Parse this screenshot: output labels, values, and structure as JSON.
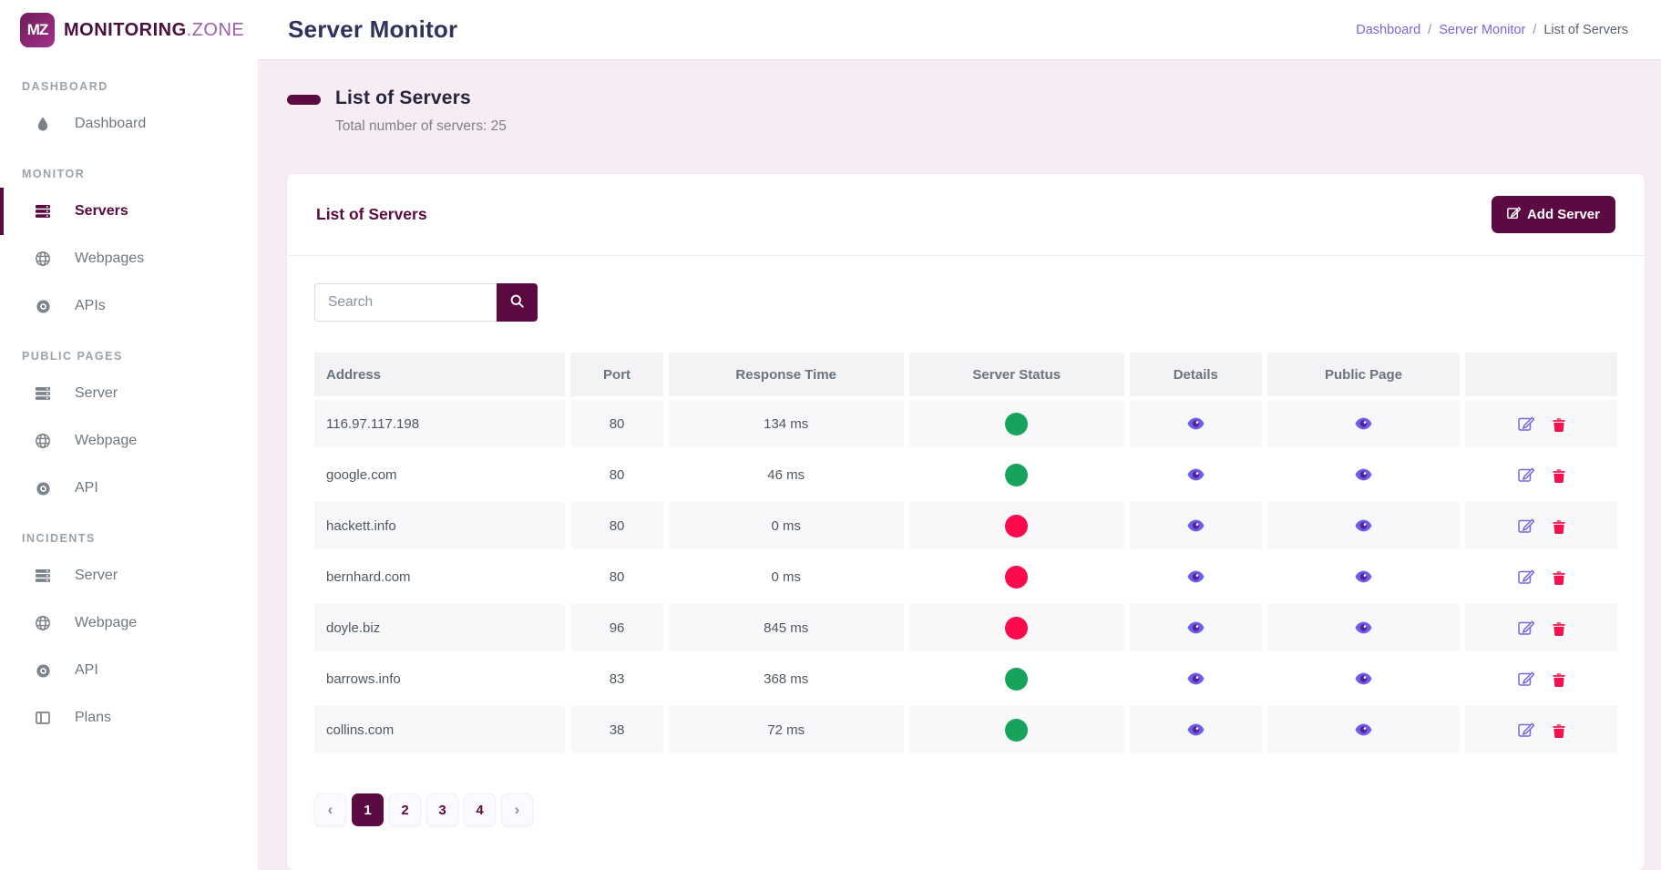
{
  "brand": {
    "badge": "MZ",
    "name_bold": "MONITORING",
    "name_light": ".ZONE"
  },
  "sidebar": {
    "sections": [
      {
        "label": "DASHBOARD",
        "items": [
          {
            "label": "Dashboard",
            "icon": "tint-icon",
            "active": false
          }
        ]
      },
      {
        "label": "MONITOR",
        "items": [
          {
            "label": "Servers",
            "icon": "server-icon",
            "active": true
          },
          {
            "label": "Webpages",
            "icon": "globe-icon",
            "active": false
          },
          {
            "label": "APIs",
            "icon": "dot-circle-icon",
            "active": false
          }
        ]
      },
      {
        "label": "PUBLIC PAGES",
        "items": [
          {
            "label": "Server",
            "icon": "server-icon",
            "active": false
          },
          {
            "label": "Webpage",
            "icon": "globe-icon",
            "active": false
          },
          {
            "label": "API",
            "icon": "dot-circle-icon",
            "active": false
          }
        ]
      },
      {
        "label": "INCIDENTS",
        "items": [
          {
            "label": "Server",
            "icon": "server-icon",
            "active": false
          },
          {
            "label": "Webpage",
            "icon": "globe-icon",
            "active": false
          },
          {
            "label": "API",
            "icon": "dot-circle-icon",
            "active": false
          },
          {
            "label": "Plans",
            "icon": "columns-icon",
            "active": false
          }
        ]
      }
    ]
  },
  "header": {
    "title": "Server Monitor",
    "breadcrumb": [
      {
        "label": "Dashboard",
        "link": true
      },
      {
        "label": "Server Monitor",
        "link": true
      },
      {
        "label": "List of Servers",
        "link": false
      }
    ],
    "breadcrumb_separator": "/"
  },
  "page": {
    "title": "List of Servers",
    "subtitle": "Total number of servers: 25"
  },
  "card": {
    "title": "List of Servers",
    "add_button_label": "Add Server",
    "search_placeholder": "Search",
    "table": {
      "columns": [
        "Address",
        "Port",
        "Response Time",
        "Server Status",
        "Details",
        "Public Page",
        ""
      ],
      "rows": [
        {
          "address": "116.97.117.198",
          "port": "80",
          "response_time": "134 ms",
          "status": "up"
        },
        {
          "address": "google.com",
          "port": "80",
          "response_time": "46 ms",
          "status": "up"
        },
        {
          "address": "hackett.info",
          "port": "80",
          "response_time": "0 ms",
          "status": "down"
        },
        {
          "address": "bernhard.com",
          "port": "80",
          "response_time": "0 ms",
          "status": "down"
        },
        {
          "address": "doyle.biz",
          "port": "96",
          "response_time": "845 ms",
          "status": "down"
        },
        {
          "address": "barrows.info",
          "port": "83",
          "response_time": "368 ms",
          "status": "up"
        },
        {
          "address": "collins.com",
          "port": "38",
          "response_time": "72 ms",
          "status": "up"
        }
      ]
    },
    "pagination": {
      "prev": "‹",
      "pages": [
        "1",
        "2",
        "3",
        "4"
      ],
      "active_page": "1",
      "next": "›"
    }
  },
  "colors": {
    "primary": "#5b0b41",
    "background_pink": "#f8ecf4",
    "status_up": "#17a35c",
    "status_down": "#fb0b4b",
    "link_violet": "#7668dd",
    "eye_violet": "#6c5ce7",
    "delete_red": "#f0134d",
    "title_navy": "#32325c"
  }
}
